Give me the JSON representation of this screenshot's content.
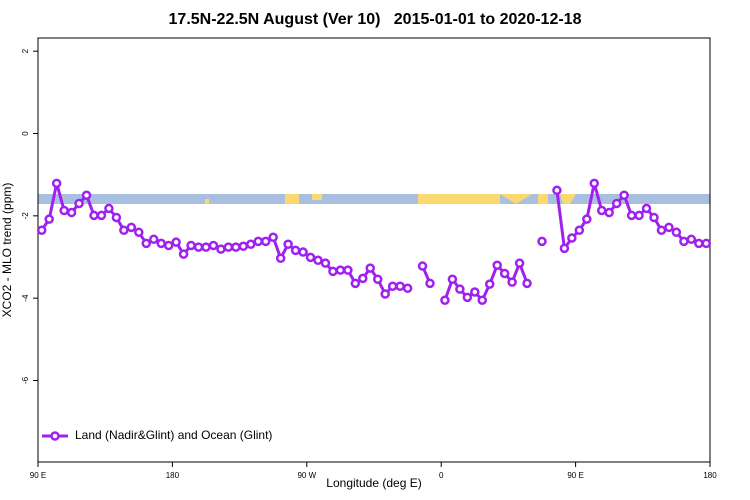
{
  "chart_data": {
    "type": "line",
    "title": "17.5N-22.5N August (Ver 10)   2015-01-01 to 2020-12-18",
    "x_label": "Longitude (deg E)",
    "y_label": "XCO2 - MLO trend (ppm)",
    "xlim": [
      90,
      540
    ],
    "ylim": [
      -7.98,
      2.32
    ],
    "xticks": [
      {
        "value": 90,
        "label": "90 E"
      },
      180,
      {
        "value": 270,
        "label": "90 W"
      },
      {
        "value": 360,
        "label": "0"
      },
      {
        "value": 450,
        "label": "90 E"
      },
      {
        "value": 540,
        "label": "180"
      }
    ],
    "yticks": [
      2,
      0,
      -2,
      -4,
      -6
    ],
    "legend": "bottom-left",
    "x": [
      92.5,
      97.5,
      102.5,
      107.5,
      112.5,
      117.5,
      122.5,
      127.5,
      132.5,
      137.5,
      142.5,
      147.5,
      152.5,
      157.5,
      162.5,
      167.5,
      172.5,
      177.5,
      182.5,
      187.5,
      192.5,
      197.5,
      202.5,
      207.5,
      212.5,
      217.5,
      222.5,
      227.5,
      232.5,
      237.5,
      242.5,
      247.5,
      252.5,
      257.5,
      262.5,
      267.5,
      272.5,
      277.5,
      282.5,
      287.5,
      292.5,
      297.5,
      302.5,
      307.5,
      312.5,
      317.5,
      322.5,
      327.5,
      332.5,
      337.5,
      342.5,
      347.5,
      352.5,
      357.5,
      362.5,
      367.5,
      372.5,
      377.5,
      382.5,
      387.5,
      392.5,
      397.5,
      402.5,
      407.5,
      412.5,
      417.5,
      422.5,
      427.5,
      432.5,
      437.5,
      442.5,
      447.5,
      452.5,
      457.5,
      462.5,
      467.5,
      472.5,
      477.5,
      482.5,
      487.5,
      492.5,
      497.5,
      502.5,
      507.5,
      512.5,
      517.5,
      522.5,
      527.5,
      532.5,
      537.5
    ],
    "series": [
      {
        "name": "Land (Nadir&Glint) and Ocean (Glint)",
        "color": "#a020f0",
        "values": [
          -2.35,
          -2.08,
          -1.21,
          -1.87,
          -1.92,
          -1.7,
          -1.5,
          -1.99,
          -1.99,
          -1.82,
          -2.04,
          -2.35,
          -2.28,
          -2.4,
          -2.67,
          -2.57,
          -2.67,
          -2.72,
          -2.64,
          -2.93,
          -2.72,
          -2.76,
          -2.76,
          -2.72,
          -2.81,
          -2.76,
          -2.76,
          -2.74,
          -2.69,
          -2.62,
          -2.62,
          -2.52,
          -3.03,
          -2.69,
          -2.84,
          -2.88,
          -3.01,
          -3.08,
          -3.15,
          -3.35,
          -3.32,
          -3.32,
          -3.64,
          -3.52,
          -3.27,
          -3.54,
          -3.9,
          -3.71,
          -3.71,
          -3.76,
          null,
          -3.22,
          -3.64,
          null,
          -4.05,
          -3.54,
          -3.78,
          -3.98,
          -3.85,
          -4.05,
          -3.66,
          -3.2,
          -3.4,
          -3.61,
          -3.15,
          -3.64,
          null,
          -2.62,
          null,
          -1.38,
          -2.79,
          -2.54,
          -2.35,
          -2.08,
          -1.21,
          -1.87,
          -1.92,
          -1.7,
          -1.5,
          -1.99,
          -1.99,
          -1.82,
          -2.04,
          -2.35,
          -2.28,
          -2.4,
          -2.62,
          -2.57,
          -2.67,
          -2.67
        ]
      }
    ]
  }
}
